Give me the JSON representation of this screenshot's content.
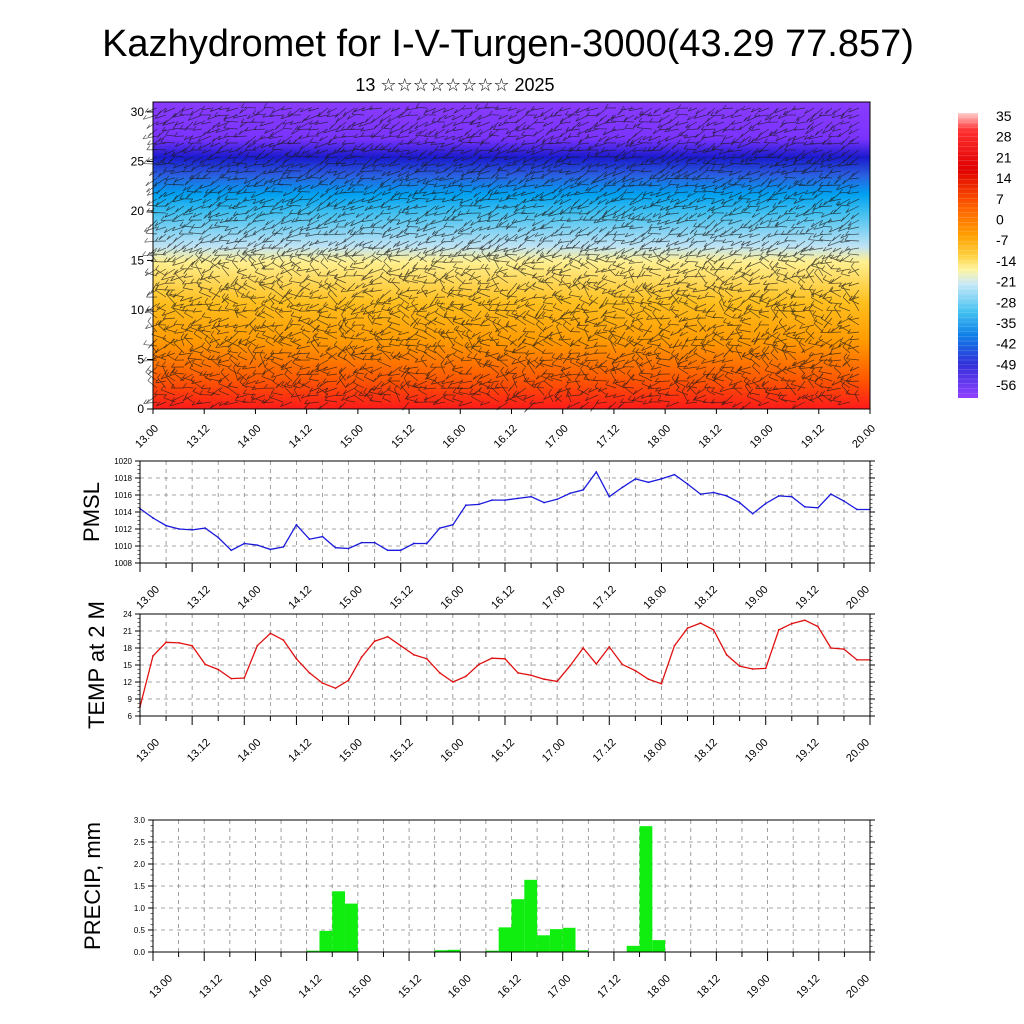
{
  "title": "Kazhydromet for I-V-Turgen-3000(43.29 77.857)",
  "subtitle": "13 ☆☆☆☆☆☆☆☆ 2025",
  "time_labels": [
    "13.00",
    "13.12",
    "14.00",
    "14.12",
    "15.00",
    "15.12",
    "16.00",
    "16.12",
    "17.00",
    "17.12",
    "18.00",
    "18.12",
    "19.00",
    "19.12",
    "20.00"
  ],
  "chart_data": [
    {
      "type": "heatmap",
      "title": "",
      "xlabel": "",
      "ylabel": "",
      "ylim": [
        0,
        31
      ],
      "y_ticks": [
        0,
        5,
        10,
        15,
        20,
        25,
        30
      ],
      "x_tick_labels": [
        "13.00",
        "13.12",
        "14.00",
        "14.12",
        "15.00",
        "15.12",
        "16.00",
        "16.12",
        "17.00",
        "17.12",
        "18.00",
        "18.12",
        "19.00",
        "19.12",
        "20.00"
      ],
      "colorbar_labels": [
        "35",
        "28",
        "21",
        "14",
        "7",
        "0",
        "-7",
        "-14",
        "-21",
        "-28",
        "-35",
        "-42",
        "-49",
        "-56"
      ],
      "overlay": "wind barbs",
      "temperature_profile": {
        "levels": [
          0,
          3,
          6,
          9,
          12,
          14,
          16,
          18,
          20,
          22,
          24,
          25,
          27,
          31
        ],
        "values": [
          22,
          16,
          10,
          4,
          -2,
          -8,
          -15,
          -26,
          -36,
          -46,
          -56,
          -60,
          -58,
          -54
        ]
      },
      "colors": [
        "#ff1a1a",
        "#ff5a00",
        "#ff9a00",
        "#ffc020",
        "#fff090",
        "#bfe3f5",
        "#3fbff0",
        "#00a0f0",
        "#2a60e0",
        "#1a1acc",
        "#7a33ff",
        "#8a3cff"
      ]
    },
    {
      "type": "line",
      "ylabel": "PMSL",
      "ylim": [
        1008,
        1020
      ],
      "y_ticks": [
        1008,
        1010,
        1012,
        1014,
        1016,
        1018,
        1020
      ],
      "x_tick_labels": [
        "13.00",
        "13.12",
        "14.00",
        "14.12",
        "15.00",
        "15.12",
        "16.00",
        "16.12",
        "17.00",
        "17.12",
        "18.00",
        "18.12",
        "19.00",
        "19.12",
        "20.00"
      ],
      "line_color": "#1a1adc",
      "x": [
        0,
        3,
        6,
        9,
        12,
        15,
        18,
        21,
        24,
        27,
        30,
        33,
        36,
        39,
        42,
        45,
        48,
        51,
        54,
        57,
        60,
        63,
        66,
        69,
        72,
        75,
        78,
        81,
        84,
        87,
        90,
        93,
        96,
        99,
        102,
        105,
        108,
        111,
        114,
        117,
        120,
        123,
        126,
        129,
        132,
        135,
        138,
        141,
        144,
        147,
        150,
        153,
        156,
        159,
        162,
        165,
        168
      ],
      "values": [
        1014.4,
        1013.3,
        1012.4,
        1012.0,
        1011.9,
        1012.1,
        1011.0,
        1009.5,
        1010.3,
        1010.1,
        1009.6,
        1009.9,
        1012.5,
        1010.8,
        1011.1,
        1009.8,
        1009.7,
        1010.4,
        1010.4,
        1009.5,
        1009.5,
        1010.3,
        1010.3,
        1012.1,
        1012.5,
        1014.8,
        1014.9,
        1015.4,
        1015.4,
        1015.6,
        1015.8,
        1015.1,
        1015.5,
        1016.2,
        1016.6,
        1018.7,
        1015.8,
        1016.9,
        1017.9,
        1017.5,
        1017.9,
        1018.4,
        1017.3,
        1016.1,
        1016.3,
        1015.9,
        1015.1,
        1013.8,
        1015.0,
        1015.9,
        1015.8,
        1014.6,
        1014.5,
        1016.1,
        1015.3,
        1014.3,
        1014.3
      ]
    },
    {
      "type": "line",
      "ylabel": "TEMP at 2 M",
      "ylim": [
        6,
        24
      ],
      "y_ticks": [
        6,
        9,
        12,
        15,
        18,
        21,
        24
      ],
      "x_tick_labels": [
        "13.00",
        "13.12",
        "14.00",
        "14.12",
        "15.00",
        "15.12",
        "16.00",
        "16.12",
        "17.00",
        "17.12",
        "18.00",
        "18.12",
        "19.00",
        "19.12",
        "20.00"
      ],
      "line_color": "#e01010",
      "x": [
        0,
        3,
        6,
        9,
        12,
        15,
        18,
        21,
        24,
        27,
        30,
        33,
        36,
        39,
        42,
        45,
        48,
        51,
        54,
        57,
        60,
        63,
        66,
        69,
        72,
        75,
        78,
        81,
        84,
        87,
        90,
        93,
        96,
        99,
        102,
        105,
        108,
        111,
        114,
        117,
        120,
        123,
        126,
        129,
        132,
        135,
        138,
        141,
        144,
        147,
        150,
        153,
        156,
        159,
        162,
        165,
        168
      ],
      "values": [
        7.6,
        16.6,
        19.0,
        18.9,
        18.4,
        15.1,
        14.2,
        12.6,
        12.7,
        18.4,
        20.6,
        19.4,
        16.1,
        13.6,
        11.8,
        10.9,
        12.3,
        16.4,
        19.2,
        20.0,
        18.4,
        16.8,
        16.1,
        13.6,
        12.0,
        13.0,
        15.1,
        16.2,
        16.1,
        13.6,
        13.2,
        12.5,
        12.1,
        14.9,
        18.0,
        15.2,
        18.2,
        15.1,
        14.0,
        12.5,
        11.7,
        18.4,
        21.5,
        22.4,
        21.2,
        16.8,
        14.8,
        14.3,
        14.4,
        21.2,
        22.3,
        22.9,
        21.8,
        18.0,
        17.8,
        15.9,
        15.9
      ]
    },
    {
      "type": "bar",
      "ylabel": "PRECIP, mm",
      "ylim": [
        0,
        3.0
      ],
      "y_ticks": [
        0.0,
        0.5,
        1.0,
        1.5,
        2.0,
        2.5,
        3.0
      ],
      "x_tick_labels": [
        "13.00",
        "13.12",
        "14.00",
        "14.12",
        "15.00",
        "15.12",
        "16.00",
        "16.12",
        "17.00",
        "17.12",
        "18.00",
        "18.12",
        "19.00",
        "19.12",
        "20.00"
      ],
      "bar_color": "#10ee10",
      "x": [
        0,
        3,
        6,
        9,
        12,
        15,
        18,
        21,
        24,
        27,
        30,
        33,
        36,
        39,
        42,
        45,
        48,
        51,
        54,
        57,
        60,
        63,
        66,
        69,
        72,
        75,
        78,
        81,
        84,
        87,
        90,
        93,
        96,
        99,
        102,
        105,
        108,
        111,
        114,
        117,
        120,
        123,
        126,
        129,
        132,
        135,
        138,
        141,
        144,
        147,
        150,
        153,
        156,
        159,
        162,
        165
      ],
      "values": [
        0,
        0,
        0,
        0,
        0,
        0,
        0,
        0,
        0,
        0,
        0,
        0.01,
        0.03,
        0.48,
        1.38,
        1.1,
        0,
        0,
        0,
        0,
        0,
        0,
        0.04,
        0.05,
        0,
        0,
        0.03,
        0.56,
        1.2,
        1.64,
        0.38,
        0.52,
        0.55,
        0.04,
        0,
        0,
        0,
        0.14,
        2.86,
        0.27,
        0,
        0,
        0,
        0,
        0,
        0,
        0,
        0,
        0,
        0,
        0,
        0,
        0,
        0,
        0,
        0
      ]
    }
  ]
}
